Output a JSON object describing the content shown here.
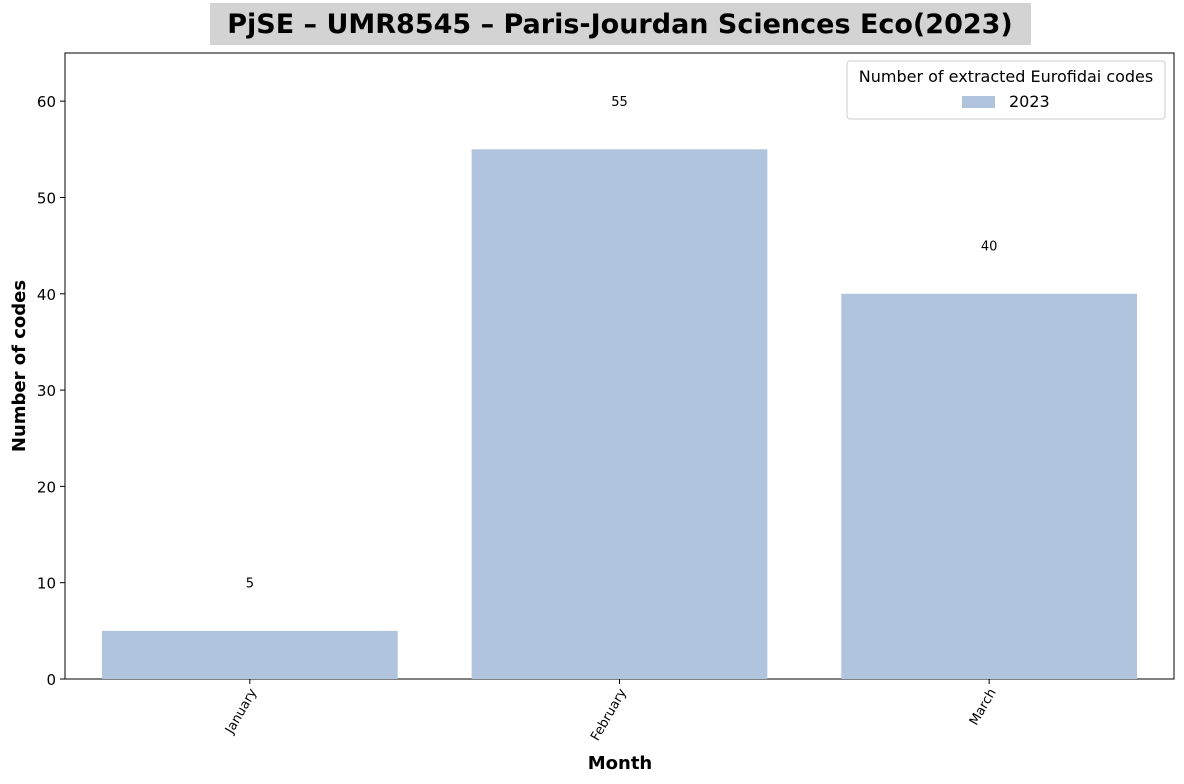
{
  "chart_data": {
    "type": "bar",
    "title": "PjSE – UMR8545 – Paris-Jourdan Sciences Eco(2023)",
    "xlabel": "Month",
    "ylabel": "Number of codes",
    "categories": [
      "January",
      "February",
      "March"
    ],
    "series": [
      {
        "name": "2023",
        "values": [
          5,
          55,
          40
        ]
      }
    ],
    "data_labels": [
      "5",
      "55",
      "40"
    ],
    "ylim": [
      0,
      65
    ],
    "yticks": [
      0,
      10,
      20,
      30,
      40,
      50,
      60
    ],
    "ytick_labels": [
      "0",
      "10",
      "20",
      "30",
      "40",
      "50",
      "60"
    ],
    "legend": {
      "title": "Number of extracted Eurofidai codes",
      "location": "upper right"
    },
    "colors": {
      "bar": "#b0c4de",
      "title_background": "#d3d3d3"
    },
    "grid": false
  }
}
